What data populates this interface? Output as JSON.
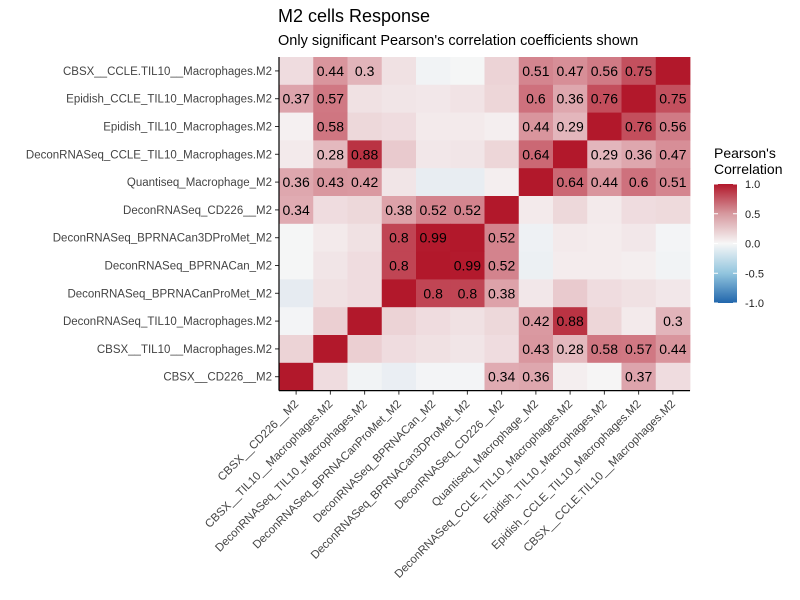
{
  "chart_data": {
    "type": "heatmap",
    "title": "M2 cells Response",
    "subtitle": "Only significant Pearson's correlation coefficients shown",
    "x_categories": [
      "CBSX__CD226__M2",
      "CBSX__TIL10__Macrophages.M2",
      "DeconRNASeq_TIL10_Macrophages.M2",
      "DeconRNASeq_BPRNACanProMet_M2",
      "DeconRNASeq_BPRNACan_M2",
      "DeconRNASeq_BPRNACan3DProMet_M2",
      "DeconRNASeq_CD226__M2",
      "Quantiseq_Macrophage_M2",
      "DeconRNASeq_CCLE_TIL10_Macrophages.M2",
      "Epidish_TIL10_Macrophages.M2",
      "Epidish_CCLE_TIL10_Macrophages.M2",
      "CBSX__CCLE.TIL10__Macrophages.M2"
    ],
    "y_categories": [
      "CBSX__CCLE.TIL10__Macrophages.M2",
      "Epidish_CCLE_TIL10_Macrophages.M2",
      "Epidish_TIL10_Macrophages.M2",
      "DeconRNASeq_CCLE_TIL10_Macrophages.M2",
      "Quantiseq_Macrophage_M2",
      "DeconRNASeq_CD226__M2",
      "DeconRNASeq_BPRNACan3DProMet_M2",
      "DeconRNASeq_BPRNACan_M2",
      "DeconRNASeq_BPRNACanProMet_M2",
      "DeconRNASeq_TIL10_Macrophages.M2",
      "CBSX__TIL10__Macrophages.M2",
      "CBSX__CD226__M2"
    ],
    "values": [
      [
        0.12,
        0.44,
        0.3,
        0.1,
        -0.03,
        -0.01,
        0.16,
        0.51,
        0.47,
        0.56,
        0.75,
        1.0
      ],
      [
        0.37,
        0.57,
        0.1,
        0.08,
        0.07,
        0.09,
        0.15,
        0.6,
        0.36,
        0.76,
        1.0,
        0.75
      ],
      [
        0.03,
        0.58,
        0.14,
        0.12,
        0.06,
        0.06,
        0.04,
        0.44,
        0.29,
        1.0,
        0.76,
        0.56
      ],
      [
        0.06,
        0.28,
        0.88,
        0.2,
        0.07,
        0.08,
        0.15,
        0.64,
        1.0,
        0.29,
        0.36,
        0.47
      ],
      [
        0.36,
        0.43,
        0.42,
        0.08,
        -0.07,
        -0.07,
        0.04,
        1.0,
        0.64,
        0.44,
        0.6,
        0.51
      ],
      [
        0.34,
        0.12,
        0.14,
        0.38,
        0.52,
        0.52,
        1.0,
        0.06,
        0.14,
        0.06,
        0.12,
        0.13
      ],
      [
        -0.01,
        0.06,
        0.1,
        0.8,
        0.99,
        1.0,
        0.52,
        -0.04,
        0.06,
        0.05,
        0.07,
        -0.02
      ],
      [
        -0.01,
        0.08,
        0.12,
        0.8,
        1.0,
        0.99,
        0.52,
        -0.05,
        0.05,
        0.05,
        0.04,
        -0.03
      ],
      [
        -0.08,
        0.1,
        0.12,
        1.0,
        0.8,
        0.8,
        0.38,
        0.07,
        0.2,
        0.12,
        0.1,
        0.07
      ],
      [
        -0.02,
        0.18,
        1.0,
        0.16,
        0.12,
        0.1,
        0.14,
        0.42,
        0.88,
        0.15,
        0.06,
        0.3
      ],
      [
        0.16,
        1.0,
        0.18,
        0.12,
        0.1,
        0.08,
        0.12,
        0.43,
        0.28,
        0.58,
        0.57,
        0.44
      ],
      [
        1.0,
        0.12,
        -0.03,
        -0.06,
        -0.02,
        -0.02,
        0.34,
        0.36,
        0.04,
        0.01,
        0.37,
        0.12
      ]
    ],
    "labels": [
      [
        "",
        "0.44",
        "0.3",
        "",
        "",
        "",
        "",
        "0.51",
        "0.47",
        "0.56",
        "0.75",
        ""
      ],
      [
        "0.37",
        "0.57",
        "",
        "",
        "",
        "",
        "",
        "0.6",
        "0.36",
        "0.76",
        "",
        "0.75"
      ],
      [
        "",
        "0.58",
        "",
        "",
        "",
        "",
        "",
        "0.44",
        "0.29",
        "",
        "0.76",
        "0.56"
      ],
      [
        "",
        "0.28",
        "0.88",
        "",
        "",
        "",
        "",
        "0.64",
        "",
        "0.29",
        "0.36",
        "0.47"
      ],
      [
        "0.36",
        "0.43",
        "0.42",
        "",
        "",
        "",
        "",
        "",
        "0.64",
        "0.44",
        "0.6",
        "0.51"
      ],
      [
        "0.34",
        "",
        "",
        "0.38",
        "0.52",
        "0.52",
        "",
        "",
        "",
        "",
        "",
        ""
      ],
      [
        "",
        "",
        "",
        "0.8",
        "0.99",
        "",
        "0.52",
        "",
        "",
        "",
        "",
        ""
      ],
      [
        "",
        "",
        "",
        "0.8",
        "",
        "0.99",
        "0.52",
        "",
        "",
        "",
        "",
        ""
      ],
      [
        "",
        "",
        "",
        "",
        "0.8",
        "0.8",
        "0.38",
        "",
        "",
        "",
        "",
        ""
      ],
      [
        "",
        "",
        "",
        "",
        "",
        "",
        "",
        "0.42",
        "0.88",
        "",
        "",
        "0.3"
      ],
      [
        "",
        "",
        "",
        "",
        "",
        "",
        "",
        "0.43",
        "0.28",
        "0.58",
        "0.57",
        "0.44"
      ],
      [
        "",
        "",
        "",
        "",
        "",
        "",
        "0.34",
        "0.36",
        "",
        "",
        "0.37",
        ""
      ]
    ],
    "color_scale": {
      "low": "#2166ac",
      "mid": "#f7f7f7",
      "high": "#b2182b",
      "limits": [
        -1,
        1
      ]
    },
    "legend": {
      "title_line1": "Pearson's",
      "title_line2": "Correlation",
      "ticks": [
        "1.0",
        "0.5",
        "0.0",
        "-0.5",
        "-1.0"
      ],
      "tick_values": [
        1.0,
        0.5,
        0.0,
        -0.5,
        -1.0
      ],
      "placement": "right"
    },
    "grid": false
  }
}
